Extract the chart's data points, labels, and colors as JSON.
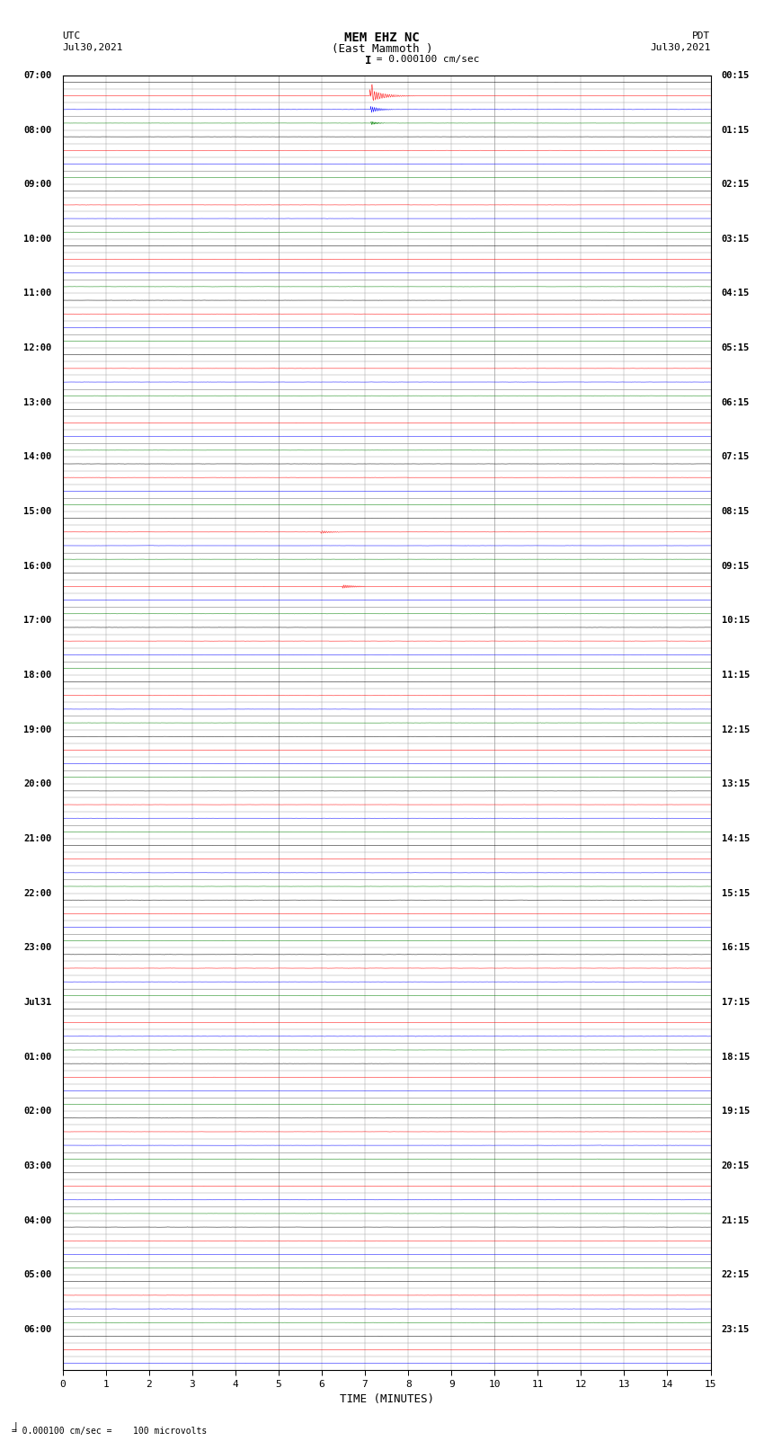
{
  "title_line1": "MEM EHZ NC",
  "title_line2": "(East Mammoth )",
  "title_line3": "I = 0.000100 cm/sec",
  "left_label_top": "UTC",
  "left_label_date": "Jul30,2021",
  "right_label_top": "PDT",
  "right_label_date": "Jul30,2021",
  "bottom_label": "TIME (MINUTES)",
  "scale_label": " = 0.000100 cm/sec =    100 microvolts",
  "xlabel_ticks": [
    0,
    1,
    2,
    3,
    4,
    5,
    6,
    7,
    8,
    9,
    10,
    11,
    12,
    13,
    14,
    15
  ],
  "utc_times": [
    "07:00",
    "",
    "",
    "",
    "08:00",
    "",
    "",
    "",
    "09:00",
    "",
    "",
    "",
    "10:00",
    "",
    "",
    "",
    "11:00",
    "",
    "",
    "",
    "12:00",
    "",
    "",
    "",
    "13:00",
    "",
    "",
    "",
    "14:00",
    "",
    "",
    "",
    "15:00",
    "",
    "",
    "",
    "16:00",
    "",
    "",
    "",
    "17:00",
    "",
    "",
    "",
    "18:00",
    "",
    "",
    "",
    "19:00",
    "",
    "",
    "",
    "20:00",
    "",
    "",
    "",
    "21:00",
    "",
    "",
    "",
    "22:00",
    "",
    "",
    "",
    "23:00",
    "",
    "",
    "",
    "Jul31",
    "",
    "",
    "",
    "01:00",
    "",
    "",
    "",
    "02:00",
    "",
    "",
    "",
    "03:00",
    "",
    "",
    "",
    "04:00",
    "",
    "",
    "",
    "05:00",
    "",
    "",
    "",
    "06:00",
    "",
    ""
  ],
  "pdt_times": [
    "00:15",
    "",
    "",
    "",
    "01:15",
    "",
    "",
    "",
    "02:15",
    "",
    "",
    "",
    "03:15",
    "",
    "",
    "",
    "04:15",
    "",
    "",
    "",
    "05:15",
    "",
    "",
    "",
    "06:15",
    "",
    "",
    "",
    "07:15",
    "",
    "",
    "",
    "08:15",
    "",
    "",
    "",
    "09:15",
    "",
    "",
    "",
    "10:15",
    "",
    "",
    "",
    "11:15",
    "",
    "",
    "",
    "12:15",
    "",
    "",
    "",
    "13:15",
    "",
    "",
    "",
    "14:15",
    "",
    "",
    "",
    "15:15",
    "",
    "",
    "",
    "16:15",
    "",
    "",
    "",
    "17:15",
    "",
    "",
    "",
    "18:15",
    "",
    "",
    "",
    "19:15",
    "",
    "",
    "",
    "20:15",
    "",
    "",
    "",
    "21:15",
    "",
    "",
    "",
    "22:15",
    "",
    "",
    "",
    "23:15",
    "",
    ""
  ],
  "n_rows": 95,
  "n_cols": 15,
  "bg_color": "white",
  "line_color_cycle": [
    "black",
    "red",
    "blue",
    "green"
  ],
  "grid_color": "#999999",
  "amplitude_scale": 0.18,
  "noise_level": 0.012,
  "eq_row1": 1,
  "eq_row2": 2,
  "eq_row3": 3,
  "eq_row4": 4,
  "eq_row5": 5,
  "eq_col": 7.15,
  "eq_amplitude": 2.8
}
